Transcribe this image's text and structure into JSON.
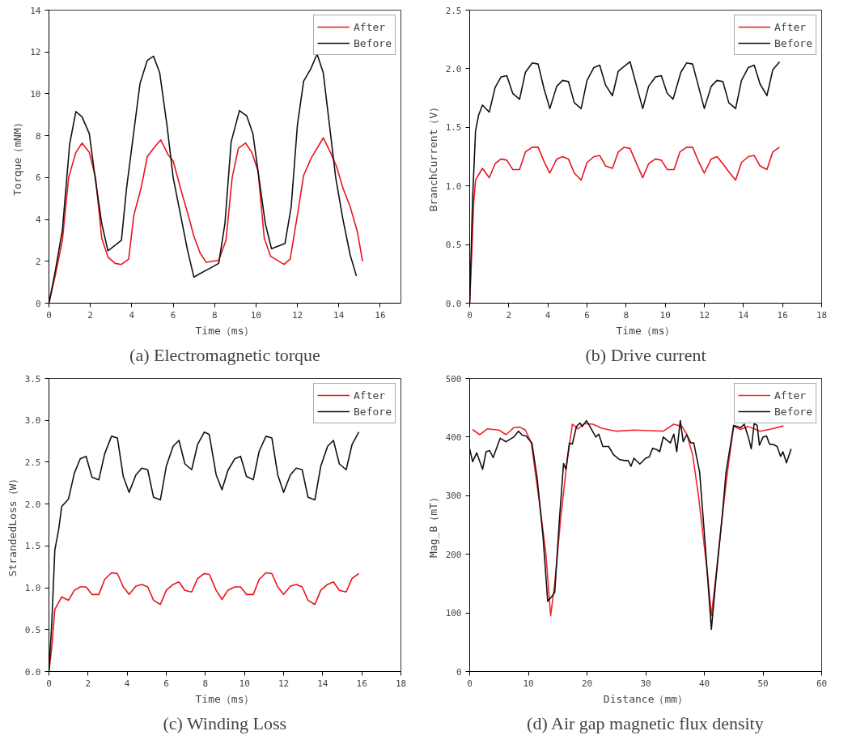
{
  "chart_data": [
    {
      "type": "line",
      "title": "(a) Electromagnetic torque",
      "xlabel": "Time（ms）",
      "ylabel": "Torque（mNM）",
      "xlim": [
        0,
        17
      ],
      "xticks": [
        0,
        2,
        4,
        6,
        8,
        10,
        12,
        14,
        16
      ],
      "ylim": [
        0,
        14
      ],
      "yticks": [
        0,
        2,
        4,
        6,
        8,
        10,
        12,
        14
      ],
      "grid": false,
      "legend": "top right",
      "series": [
        {
          "name": "After",
          "color": "#e8141c",
          "x": [
            0,
            0.3,
            0.65,
            0.95,
            1.3,
            1.6,
            1.95,
            2.25,
            2.55,
            2.85,
            3.2,
            3.5,
            3.85,
            4.1,
            4.45,
            4.75,
            5.05,
            5.4,
            5.75,
            6.0,
            6.35,
            6.7,
            7.0,
            7.3,
            7.6,
            8.2,
            8.55,
            8.85,
            9.15,
            9.5,
            9.8,
            10.1,
            10.4,
            10.7,
            11.35,
            11.65,
            12.0,
            12.3,
            12.65,
            13.25,
            13.6,
            13.9,
            14.2,
            14.55,
            14.9,
            15.15
          ],
          "values": [
            0,
            1.3,
            3.0,
            6.0,
            7.2,
            7.65,
            7.2,
            6.0,
            3.1,
            2.2,
            1.9,
            1.85,
            2.1,
            4.2,
            5.5,
            7.0,
            7.4,
            7.8,
            7.1,
            6.8,
            5.5,
            4.3,
            3.2,
            2.4,
            1.95,
            2.05,
            3.0,
            6.0,
            7.4,
            7.65,
            7.2,
            6.3,
            3.1,
            2.25,
            1.85,
            2.1,
            4.2,
            6.1,
            6.9,
            7.9,
            7.2,
            6.5,
            5.5,
            4.6,
            3.4,
            2.0
          ]
        },
        {
          "name": "Before",
          "color": "#111111",
          "x": [
            0,
            0.3,
            0.65,
            1,
            1.3,
            1.6,
            1.95,
            2.2,
            2.55,
            2.85,
            3.5,
            3.75,
            4.1,
            4.4,
            4.75,
            5.05,
            5.35,
            5.7,
            6.0,
            6.4,
            6.7,
            7.0,
            8.2,
            8.5,
            8.8,
            9.2,
            9.55,
            9.85,
            10.1,
            10.45,
            10.75,
            11.4,
            11.7,
            12.0,
            12.3,
            12.65,
            12.95,
            13.25,
            13.55,
            13.85,
            14.2,
            14.55,
            14.85
          ],
          "values": [
            0,
            1.5,
            3.5,
            7.6,
            9.15,
            8.9,
            8.1,
            6.2,
            3.8,
            2.5,
            3.0,
            5.5,
            8.2,
            10.5,
            11.6,
            11.8,
            11.0,
            8.5,
            6.0,
            4.0,
            2.5,
            1.25,
            1.9,
            3.8,
            7.7,
            9.2,
            8.95,
            8.1,
            6.3,
            3.8,
            2.6,
            2.85,
            4.6,
            8.5,
            10.6,
            11.2,
            11.9,
            11.0,
            8.5,
            6.0,
            4.0,
            2.3,
            1.3
          ]
        }
      ]
    },
    {
      "type": "line",
      "title": "(b) Drive current",
      "xlabel": "Time（ms）",
      "ylabel": "BranchCurrent（V）",
      "xlim": [
        0,
        18
      ],
      "xticks": [
        0,
        2,
        4,
        6,
        8,
        10,
        12,
        14,
        16,
        18
      ],
      "ylim": [
        0,
        2.5
      ],
      "yticks": [
        {
          "value": 0,
          "label": "0.0"
        },
        0.5,
        {
          "value": 1,
          "label": "1.0"
        },
        1.5,
        {
          "value": 2,
          "label": "2.0"
        },
        2.5
      ],
      "grid": false,
      "legend": "top right",
      "series": [
        {
          "name": "After",
          "color": "#e8141c",
          "x": [
            0,
            0.1,
            0.2,
            0.3,
            0.65,
            1,
            1.3,
            1.6,
            1.9,
            2.2,
            2.55,
            2.85,
            3.2,
            3.5,
            3.8,
            4.1,
            4.45,
            4.75,
            5.05,
            5.35,
            5.7,
            6.0,
            6.35,
            6.65,
            6.95,
            7.3,
            7.6,
            7.9,
            8.2,
            8.85,
            9.15,
            9.5,
            9.8,
            10.1,
            10.45,
            10.75,
            11.1,
            11.4,
            11.7,
            12.0,
            12.35,
            12.65,
            12.95,
            13.25,
            13.6,
            13.9,
            14.25,
            14.55,
            14.85,
            15.2,
            15.5,
            15.85
          ],
          "values": [
            0,
            0.4,
            0.85,
            1.05,
            1.15,
            1.07,
            1.19,
            1.23,
            1.22,
            1.14,
            1.14,
            1.29,
            1.33,
            1.33,
            1.21,
            1.11,
            1.23,
            1.25,
            1.23,
            1.11,
            1.05,
            1.2,
            1.25,
            1.26,
            1.17,
            1.15,
            1.29,
            1.33,
            1.32,
            1.07,
            1.19,
            1.23,
            1.22,
            1.14,
            1.14,
            1.29,
            1.33,
            1.33,
            1.21,
            1.11,
            1.23,
            1.25,
            1.19,
            1.12,
            1.05,
            1.2,
            1.25,
            1.26,
            1.17,
            1.14,
            1.29,
            1.33
          ]
        },
        {
          "name": "Before",
          "color": "#111111",
          "x": [
            0,
            0.15,
            0.3,
            0.45,
            0.65,
            1,
            1.3,
            1.6,
            1.9,
            2.2,
            2.55,
            2.85,
            3.2,
            3.5,
            3.8,
            4.1,
            4.45,
            4.75,
            5.05,
            5.35,
            5.7,
            6.0,
            6.35,
            6.65,
            6.95,
            7.3,
            7.6,
            8.2,
            8.85,
            9.15,
            9.5,
            9.8,
            10.1,
            10.4,
            10.8,
            11.1,
            11.4,
            11.7,
            12.0,
            12.35,
            12.65,
            12.95,
            13.25,
            13.6,
            13.9,
            14.25,
            14.55,
            14.85,
            15.2,
            15.5,
            15.85
          ],
          "values": [
            0,
            0.9,
            1.47,
            1.6,
            1.69,
            1.63,
            1.84,
            1.93,
            1.94,
            1.79,
            1.74,
            1.97,
            2.05,
            2.04,
            1.83,
            1.66,
            1.85,
            1.9,
            1.89,
            1.71,
            1.66,
            1.9,
            2.01,
            2.03,
            1.86,
            1.77,
            1.98,
            2.06,
            1.66,
            1.85,
            1.93,
            1.94,
            1.79,
            1.74,
            1.97,
            2.05,
            2.04,
            1.85,
            1.66,
            1.85,
            1.9,
            1.89,
            1.71,
            1.66,
            1.9,
            2.01,
            2.03,
            1.87,
            1.77,
            1.99,
            2.06
          ]
        }
      ]
    },
    {
      "type": "line",
      "title": "(c) Winding Loss",
      "xlabel": "Time（ms）",
      "ylabel": "StrandedLoss（W）",
      "xlim": [
        0,
        18
      ],
      "xticks": [
        0,
        2,
        4,
        6,
        8,
        10,
        12,
        14,
        16,
        18
      ],
      "ylim": [
        0,
        3.5
      ],
      "yticks": [
        {
          "value": 0,
          "label": "0.0"
        },
        0.5,
        {
          "value": 1,
          "label": "1.0"
        },
        1.5,
        {
          "value": 2,
          "label": "2.0"
        },
        2.5,
        {
          "value": 3,
          "label": "3.0"
        },
        3.5
      ],
      "grid": false,
      "legend": "top right",
      "series": [
        {
          "name": "After",
          "color": "#e8141c",
          "x": [
            0,
            0.15,
            0.3,
            0.65,
            1,
            1.3,
            1.6,
            1.9,
            2.2,
            2.55,
            2.85,
            3.2,
            3.5,
            3.8,
            4.1,
            4.45,
            4.75,
            5.05,
            5.35,
            5.7,
            6.0,
            6.35,
            6.65,
            6.95,
            7.3,
            7.6,
            7.95,
            8.2,
            8.55,
            8.85,
            9.15,
            9.5,
            9.8,
            10.1,
            10.45,
            10.75,
            11.1,
            11.4,
            11.7,
            12.0,
            12.35,
            12.65,
            12.95,
            13.25,
            13.6,
            13.9,
            14.25,
            14.55,
            14.85,
            15.2,
            15.5,
            15.85
          ],
          "values": [
            0,
            0.3,
            0.74,
            0.89,
            0.85,
            0.97,
            1.01,
            1.01,
            0.92,
            0.92,
            1.1,
            1.18,
            1.17,
            1.01,
            0.92,
            1.02,
            1.04,
            1.01,
            0.85,
            0.8,
            0.97,
            1.04,
            1.07,
            0.97,
            0.95,
            1.11,
            1.17,
            1.16,
            0.97,
            0.86,
            0.97,
            1.01,
            1.01,
            0.92,
            0.92,
            1.1,
            1.18,
            1.17,
            1.01,
            0.92,
            1.02,
            1.04,
            1.01,
            0.85,
            0.8,
            0.97,
            1.04,
            1.07,
            0.97,
            0.95,
            1.11,
            1.17
          ]
        },
        {
          "name": "Before",
          "color": "#111111",
          "x": [
            0,
            0.15,
            0.3,
            0.5,
            0.65,
            1,
            1.3,
            1.6,
            1.9,
            2.2,
            2.55,
            2.85,
            3.2,
            3.5,
            3.8,
            4.1,
            4.45,
            4.75,
            5.05,
            5.35,
            5.7,
            6.0,
            6.35,
            6.65,
            6.95,
            7.3,
            7.6,
            7.95,
            8.2,
            8.55,
            8.85,
            9.15,
            9.5,
            9.8,
            10.1,
            10.45,
            10.75,
            11.1,
            11.4,
            11.7,
            12.0,
            12.35,
            12.65,
            12.95,
            13.25,
            13.6,
            13.9,
            14.25,
            14.55,
            14.85,
            15.2,
            15.5,
            15.85
          ],
          "values": [
            0,
            0.6,
            1.45,
            1.7,
            1.97,
            2.06,
            2.37,
            2.54,
            2.57,
            2.32,
            2.29,
            2.6,
            2.81,
            2.79,
            2.33,
            2.14,
            2.35,
            2.43,
            2.41,
            2.08,
            2.05,
            2.45,
            2.69,
            2.76,
            2.48,
            2.41,
            2.71,
            2.86,
            2.83,
            2.35,
            2.17,
            2.4,
            2.54,
            2.57,
            2.33,
            2.29,
            2.63,
            2.81,
            2.79,
            2.35,
            2.14,
            2.35,
            2.43,
            2.41,
            2.08,
            2.05,
            2.45,
            2.69,
            2.76,
            2.48,
            2.41,
            2.71,
            2.86
          ]
        }
      ]
    },
    {
      "type": "line",
      "title": "(d) Air gap magnetic flux density",
      "xlabel": "Distance（mm）",
      "ylabel": "Mag_B（mT）",
      "xlim": [
        0,
        60
      ],
      "xticks": [
        0,
        10,
        20,
        30,
        40,
        50,
        60
      ],
      "ylim": [
        0,
        500
      ],
      "yticks": [
        0,
        100,
        200,
        300,
        400,
        500
      ],
      "grid": false,
      "legend": "top right",
      "series": [
        {
          "name": "After",
          "color": "#f2262e",
          "x": [
            0.5,
            1.7,
            3,
            5,
            6.2,
            7.5,
            8.5,
            9.5,
            10.5,
            12,
            13,
            13.8,
            14.5,
            15.5,
            16.5,
            17.5,
            18.5,
            19.5,
            21,
            22.5,
            25,
            28,
            31,
            33,
            34.8,
            36.2,
            37,
            38,
            39,
            40.5,
            41.2,
            42,
            43,
            44,
            45,
            46.2,
            47.5,
            49.5,
            51.5,
            53.5
          ],
          "values": [
            413,
            404,
            414,
            412,
            404,
            416,
            417,
            412,
            390,
            280,
            200,
            95,
            150,
            260,
            350,
            422,
            414,
            423,
            422,
            415,
            410,
            412,
            411,
            410,
            422,
            418,
            405,
            370,
            300,
            170,
            95,
            165,
            260,
            345,
            418,
            413,
            418,
            410,
            414,
            419
          ]
        },
        {
          "name": "Before",
          "color": "#111111",
          "x": [
            0,
            0.5,
            1.2,
            2.2,
            2.8,
            3.4,
            4,
            5.2,
            6.2,
            7.5,
            8.3,
            9,
            9.6,
            10.6,
            11.5,
            12.5,
            13.3,
            14,
            14.5,
            15.3,
            16,
            16.4,
            17,
            17.5,
            18.2,
            18.8,
            19.2,
            19.9,
            20.5,
            21.5,
            22,
            22.7,
            23.7,
            24.5,
            25.5,
            26.3,
            27,
            27.5,
            28,
            29,
            30,
            30.6,
            31.2,
            32,
            32.4,
            33,
            34.2,
            34.8,
            35.3,
            35.9,
            36.4,
            37,
            37.7,
            38.2,
            39.2,
            40.2,
            41.2,
            42,
            43,
            43.7,
            45,
            46.2,
            46.8,
            47.5,
            48,
            48.5,
            49,
            49.4,
            50,
            50.6,
            51.1,
            51.8,
            52.4,
            53,
            53.4,
            54,
            54.8
          ],
          "values": [
            380,
            358,
            373,
            345,
            375,
            377,
            365,
            398,
            392,
            400,
            410,
            403,
            402,
            390,
            330,
            230,
            120,
            128,
            135,
            260,
            355,
            345,
            390,
            388,
            418,
            424,
            418,
            428,
            418,
            400,
            405,
            384,
            384,
            370,
            362,
            360,
            360,
            350,
            364,
            354,
            364,
            366,
            381,
            378,
            375,
            400,
            390,
            405,
            375,
            428,
            392,
            404,
            390,
            390,
            340,
            210,
            72,
            160,
            260,
            340,
            420,
            416,
            422,
            400,
            380,
            423,
            420,
            386,
            400,
            402,
            388,
            387,
            384,
            367,
            375,
            356,
            380
          ]
        }
      ]
    }
  ]
}
